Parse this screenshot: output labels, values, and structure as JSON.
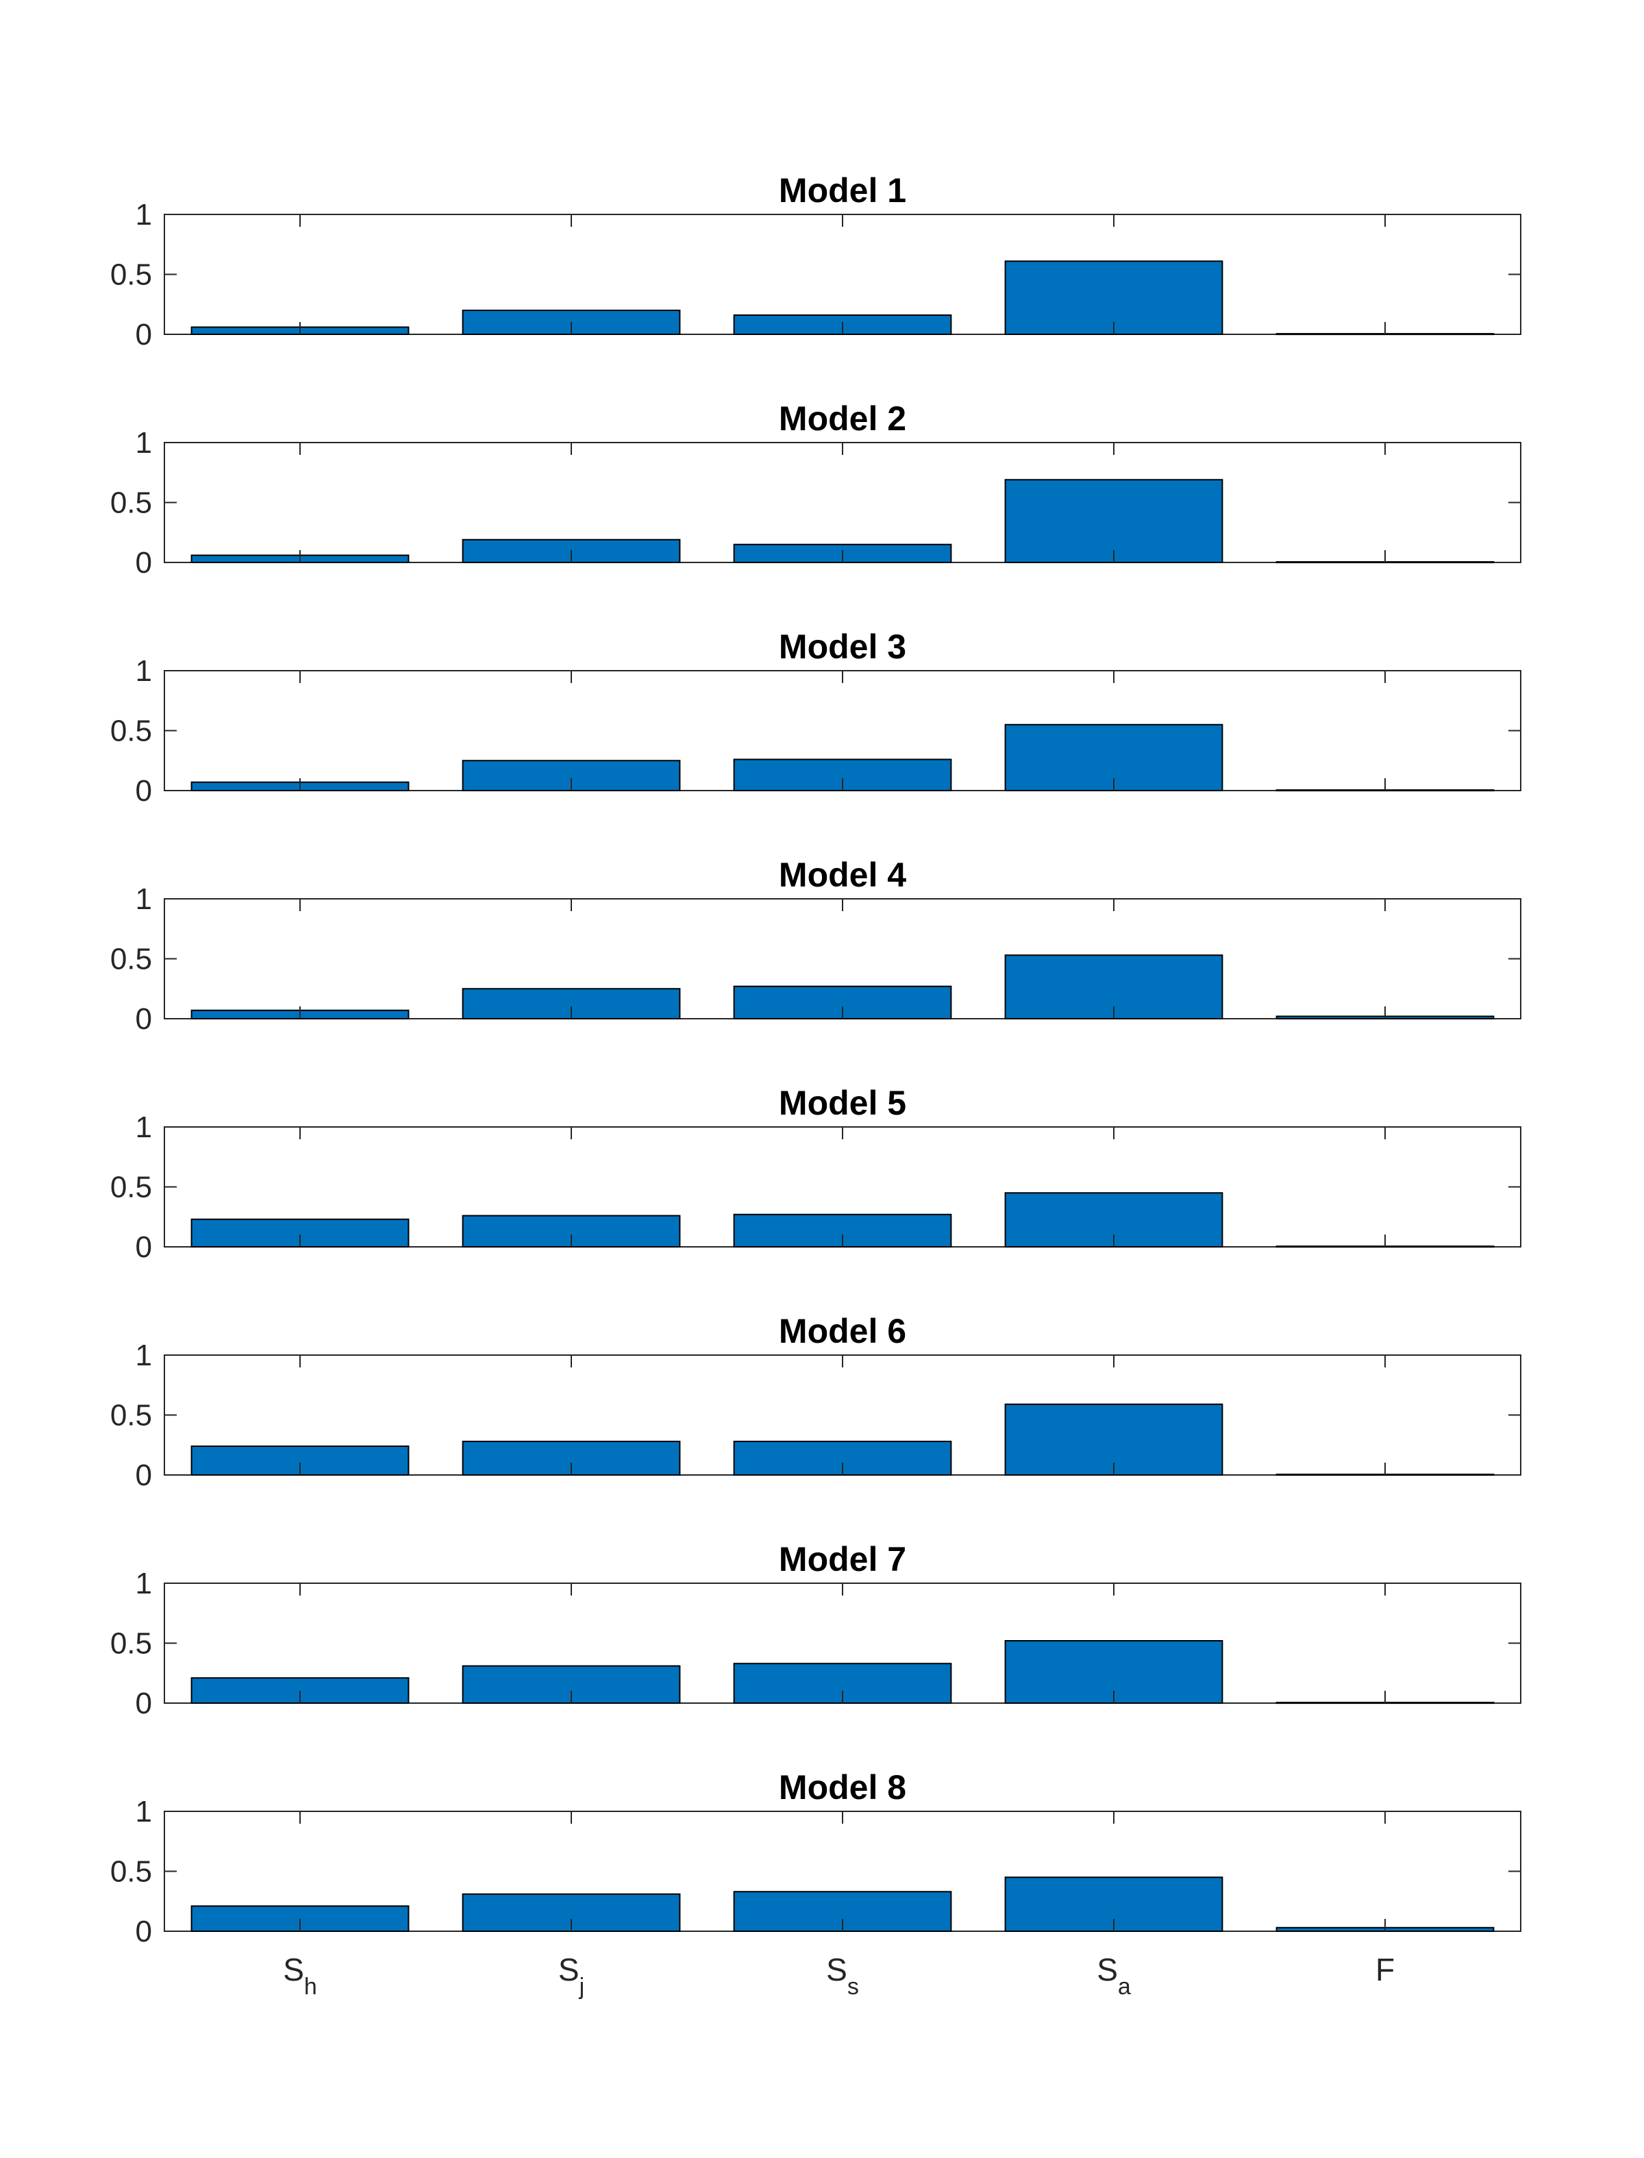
{
  "chart_data": [
    {
      "type": "bar",
      "title": "Model 1",
      "ylim": [
        0,
        1
      ],
      "yticks": [
        "0",
        "0.5",
        "1"
      ],
      "values": [
        0.06,
        0.2,
        0.16,
        0.61,
        0.005
      ]
    },
    {
      "type": "bar",
      "title": "Model 2",
      "ylim": [
        0,
        1
      ],
      "yticks": [
        "0",
        "0.5",
        "1"
      ],
      "values": [
        0.06,
        0.19,
        0.15,
        0.69,
        0.005
      ]
    },
    {
      "type": "bar",
      "title": "Model 3",
      "ylim": [
        0,
        1
      ],
      "yticks": [
        "0",
        "0.5",
        "1"
      ],
      "values": [
        0.07,
        0.25,
        0.26,
        0.55,
        0.005
      ]
    },
    {
      "type": "bar",
      "title": "Model 4",
      "ylim": [
        0,
        1
      ],
      "yticks": [
        "0",
        "0.5",
        "1"
      ],
      "values": [
        0.07,
        0.25,
        0.27,
        0.53,
        0.02
      ]
    },
    {
      "type": "bar",
      "title": "Model 5",
      "ylim": [
        0,
        1
      ],
      "yticks": [
        "0",
        "0.5",
        "1"
      ],
      "values": [
        0.23,
        0.26,
        0.27,
        0.45,
        0.005
      ]
    },
    {
      "type": "bar",
      "title": "Model 6",
      "ylim": [
        0,
        1
      ],
      "yticks": [
        "0",
        "0.5",
        "1"
      ],
      "values": [
        0.24,
        0.28,
        0.28,
        0.59,
        0.005
      ]
    },
    {
      "type": "bar",
      "title": "Model 7",
      "ylim": [
        0,
        1
      ],
      "yticks": [
        "0",
        "0.5",
        "1"
      ],
      "values": [
        0.21,
        0.31,
        0.33,
        0.52,
        0.005
      ]
    },
    {
      "type": "bar",
      "title": "Model 8",
      "ylim": [
        0,
        1
      ],
      "yticks": [
        "0",
        "0.5",
        "1"
      ],
      "values": [
        0.21,
        0.31,
        0.33,
        0.45,
        0.03
      ]
    }
  ],
  "categories": [
    {
      "base": "S",
      "sub": "h"
    },
    {
      "base": "S",
      "sub": "j"
    },
    {
      "base": "S",
      "sub": "s"
    },
    {
      "base": "S",
      "sub": "a"
    },
    {
      "base": "F",
      "sub": ""
    }
  ],
  "colors": {
    "bar": "#0072BD",
    "edge": "#000000",
    "axis": "#262626"
  }
}
